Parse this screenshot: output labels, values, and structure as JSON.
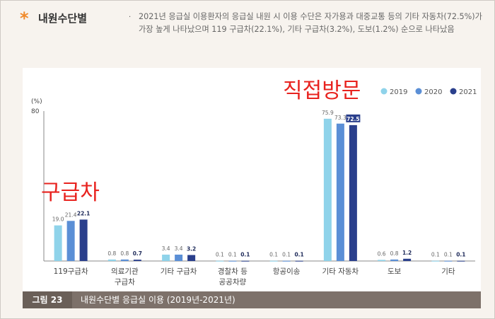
{
  "header": {
    "star": "*",
    "title": "내원수단별",
    "bullet": "·",
    "description": "2021년 응급실 이용환자의 응급실 내원 시 이용 수단은 자가용과 대중교통 등의 기타 자동차(72.5%)가 가장 높게 나타났으며 119 구급차(22.1%), 기타 구급차(3.2%), 도보(1.2%) 순으로 나타났음"
  },
  "caption": {
    "number": "그림 23",
    "text": "내원수단별 응급실 이용 (2019년-2021년)"
  },
  "annotations": {
    "overlay_left": "구급차",
    "overlay_right": "직접방문"
  },
  "colors": {
    "s2019": "#8fd3ea",
    "s2020": "#5b8fd6",
    "s2021": "#2a3f8c",
    "overlay": "#e8231f"
  },
  "chart_data": {
    "type": "bar",
    "ylabel": "(%)",
    "ylim": [
      0,
      80
    ],
    "yticks": [
      "80"
    ],
    "categories": [
      [
        "119구급차"
      ],
      [
        "의료기관",
        "구급차"
      ],
      [
        "기타 구급차"
      ],
      [
        "경찰차 등",
        "공공차량"
      ],
      [
        "항공이송"
      ],
      [
        "기타 자동차"
      ],
      [
        "도보"
      ],
      [
        "기타"
      ]
    ],
    "series": [
      {
        "name": "2019",
        "values": [
          19.0,
          0.8,
          3.4,
          0.1,
          0.1,
          75.9,
          0.6,
          0.1
        ],
        "labels": [
          "19.0",
          "0.8",
          "3.4",
          "0.1",
          "0.1",
          "75.9",
          "0.6",
          "0.1"
        ]
      },
      {
        "name": "2020",
        "values": [
          21.4,
          0.8,
          3.4,
          0.1,
          0.1,
          73.3,
          0.8,
          0.1
        ],
        "labels": [
          "21.4",
          "0.8",
          "3.4",
          "0.1",
          "0.1",
          "73.3",
          "0.8",
          "0.1"
        ]
      },
      {
        "name": "2021",
        "values": [
          22.1,
          0.7,
          3.2,
          0.1,
          0.1,
          72.5,
          1.2,
          0.1
        ],
        "labels": [
          "22.1",
          "0.7",
          "3.2",
          "0.1",
          "0.1",
          "72.5",
          "1.2",
          "0.1"
        ]
      }
    ],
    "highlight": {
      "series": 2,
      "category": 5
    },
    "legend_position": "top-right"
  }
}
